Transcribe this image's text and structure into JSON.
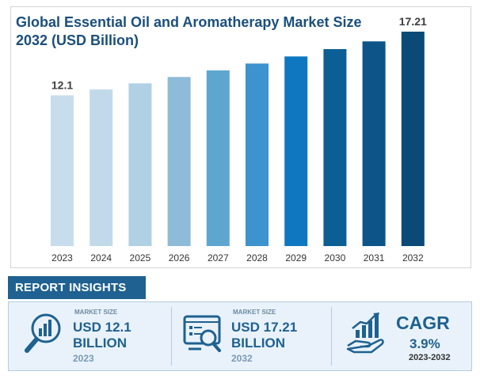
{
  "chart_data": {
    "type": "bar",
    "title": "Global Essential Oil and Aromatherapy Market Size 2032 (USD Billion)",
    "categories": [
      "2023",
      "2024",
      "2025",
      "2026",
      "2027",
      "2028",
      "2029",
      "2030",
      "2031",
      "2032"
    ],
    "values": [
      12.1,
      12.57,
      13.06,
      13.57,
      14.1,
      14.65,
      15.22,
      15.81,
      16.43,
      17.21
    ],
    "value_labels": [
      "12.1",
      "",
      "",
      "",
      "",
      "",
      "",
      "",
      "",
      "17.21"
    ],
    "colors": [
      "#c7ddec",
      "#c2d9ea",
      "#b0d0e4",
      "#8dbbd8",
      "#5ea6d0",
      "#3c93cd",
      "#0e77c0",
      "#0c5f95",
      "#0d5588",
      "#0b4a77"
    ],
    "legend": "none",
    "grid": false
  },
  "insights": {
    "header": "REPORT INSIGHTS",
    "cards": [
      {
        "label": "MARKET SIZE",
        "value_line1": "USD 12.1",
        "value_line2": "BILLION",
        "year": "2023",
        "icon": "magnifier-chart-icon"
      },
      {
        "label": "MARKET SIZE",
        "value_line1": "USD 17.21",
        "value_line2": "BILLION",
        "year": "2032",
        "icon": "monitor-analysis-icon"
      }
    ],
    "cagr": {
      "title": "CAGR",
      "value": "3.9%",
      "range": "2023-2032",
      "icon": "hand-growth-chart-icon"
    }
  }
}
